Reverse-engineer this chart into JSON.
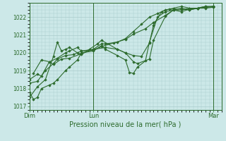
{
  "title": "",
  "xlabel": "Pression niveau de la mer( hPa )",
  "bg_color": "#cce8e8",
  "grid_color": "#aacccc",
  "line_color": "#2d6b2d",
  "marker_color": "#2d6b2d",
  "ylim": [
    1016.8,
    1022.8
  ],
  "yticks": [
    1017,
    1018,
    1019,
    1020,
    1021,
    1022
  ],
  "xlim": [
    0,
    48
  ],
  "xtick_positions": [
    0,
    16,
    46
  ],
  "xtick_labels": [
    "Dim",
    "Lun",
    "Mar"
  ],
  "vlines": [
    0,
    16,
    46
  ],
  "series": [
    [
      0,
      1018.5,
      2,
      1018.8,
      3,
      1018.7,
      5,
      1019.5,
      7,
      1019.7,
      9,
      1020.0,
      10,
      1020.1,
      12,
      1020.3,
      13,
      1020.1,
      16,
      1020.2,
      18,
      1020.5,
      19,
      1020.5,
      22,
      1020.6,
      24,
      1020.8,
      26,
      1021.2,
      28,
      1021.6,
      30,
      1022.0,
      32,
      1022.2,
      34,
      1022.4,
      36,
      1022.5,
      38,
      1022.6,
      40,
      1022.5,
      42,
      1022.5,
      44,
      1022.6,
      46,
      1022.6
    ],
    [
      0,
      1017.8,
      1,
      1017.4,
      2,
      1017.5,
      3,
      1018.0,
      5,
      1018.2,
      6,
      1018.3,
      7,
      1018.5,
      9,
      1019.0,
      10,
      1019.2,
      12,
      1019.6,
      13,
      1020.0,
      16,
      1020.1,
      18,
      1020.4,
      19,
      1020.2,
      22,
      1019.85,
      24,
      1019.6,
      25,
      1018.9,
      26,
      1018.85,
      27,
      1019.2,
      29,
      1019.55,
      30,
      1020.6,
      32,
      1022.0,
      34,
      1022.3,
      36,
      1022.4,
      38,
      1022.5,
      40,
      1022.4,
      42,
      1022.5,
      44,
      1022.6,
      46,
      1022.55
    ],
    [
      0,
      1017.5,
      2,
      1018.1,
      4,
      1018.5,
      6,
      1019.8,
      7,
      1020.6,
      8,
      1020.1,
      9,
      1020.2,
      10,
      1020.3,
      12,
      1020.0,
      13,
      1019.9,
      15,
      1020.2,
      17,
      1020.5,
      18,
      1020.7,
      22,
      1020.2,
      24,
      1020.0,
      26,
      1019.85,
      28,
      1019.8,
      30,
      1020.55,
      31,
      1021.55,
      33,
      1022.3,
      35,
      1022.45,
      38,
      1022.45,
      40,
      1022.4,
      42,
      1022.5,
      44,
      1022.55,
      46,
      1022.6
    ],
    [
      0,
      1018.3,
      2,
      1018.4,
      4,
      1019.0,
      6,
      1019.4,
      7,
      1019.65,
      9,
      1019.85,
      11,
      1019.9,
      13,
      1020.1,
      16,
      1020.15,
      18,
      1020.35,
      21,
      1020.55,
      24,
      1020.75,
      26,
      1021.05,
      29,
      1021.35,
      31,
      1021.7,
      34,
      1022.1,
      36,
      1022.4,
      38,
      1022.4,
      40,
      1022.5,
      42,
      1022.5,
      44,
      1022.55,
      46,
      1022.6
    ],
    [
      1,
      1018.85,
      3,
      1019.6,
      5,
      1019.5,
      6,
      1019.35,
      8,
      1019.65,
      10,
      1019.7,
      13,
      1019.95,
      16,
      1020.2,
      19,
      1020.3,
      22,
      1020.2,
      24,
      1020.0,
      26,
      1019.5,
      27,
      1019.4,
      30,
      1019.65,
      31,
      1020.7,
      34,
      1022.05,
      36,
      1022.4,
      38,
      1022.3,
      40,
      1022.45,
      42,
      1022.5,
      44,
      1022.5,
      46,
      1022.55
    ]
  ]
}
